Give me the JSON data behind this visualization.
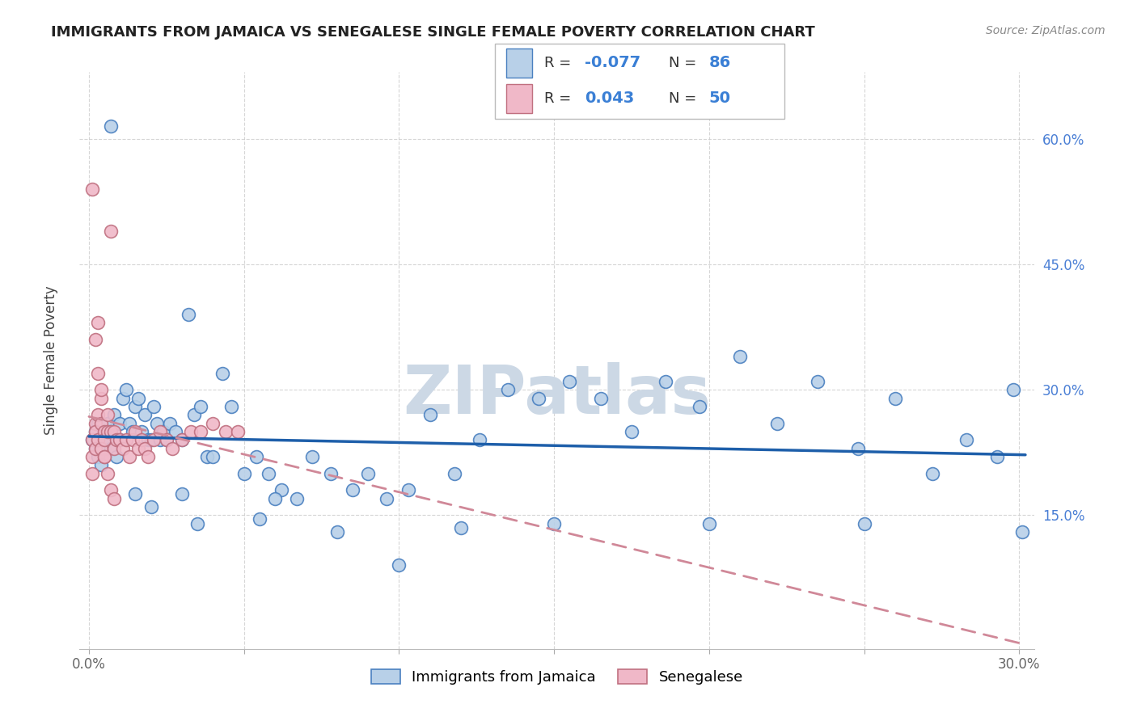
{
  "title": "IMMIGRANTS FROM JAMAICA VS SENEGALESE SINGLE FEMALE POVERTY CORRELATION CHART",
  "source": "Source: ZipAtlas.com",
  "ylabel": "Single Female Poverty",
  "legend_label1": "Immigrants from Jamaica",
  "legend_label2": "Senegalese",
  "r1_label": "R = ",
  "r1_val": "-0.077",
  "n1_label": "N = ",
  "n1_val": "86",
  "r2_label": "R = ",
  "r2_val": "0.043",
  "n2_label": "N = ",
  "n2_val": "50",
  "color_blue_fill": "#b8d0e8",
  "color_blue_edge": "#4a80c0",
  "color_pink_fill": "#f0b8c8",
  "color_pink_edge": "#c07080",
  "trendline_blue_color": "#1e5faa",
  "trendline_pink_color": "#d08898",
  "watermark": "ZIPatlas",
  "watermark_color": "#ccd8e5",
  "legend_text_color": "#333333",
  "legend_val_color": "#3a7fd5",
  "title_color": "#222222",
  "source_color": "#888888",
  "ytick_color": "#4a7fd5",
  "xtick_color": "#666666",
  "ylabel_color": "#444444",
  "grid_color": "#cccccc",
  "xlim": [
    -0.003,
    0.305
  ],
  "ylim": [
    -0.01,
    0.68
  ],
  "ytick_vals": [
    0.15,
    0.3,
    0.45,
    0.6
  ],
  "ytick_labels": [
    "15.0%",
    "30.0%",
    "45.0%",
    "60.0%"
  ],
  "xtick_vals": [
    0.0,
    0.05,
    0.1,
    0.15,
    0.2,
    0.25,
    0.3
  ],
  "jamaica_x": [
    0.001,
    0.002,
    0.002,
    0.003,
    0.003,
    0.004,
    0.004,
    0.005,
    0.005,
    0.006,
    0.006,
    0.007,
    0.007,
    0.008,
    0.009,
    0.01,
    0.01,
    0.011,
    0.012,
    0.013,
    0.014,
    0.015,
    0.016,
    0.017,
    0.018,
    0.019,
    0.02,
    0.021,
    0.022,
    0.023,
    0.024,
    0.025,
    0.026,
    0.028,
    0.03,
    0.032,
    0.034,
    0.036,
    0.038,
    0.04,
    0.043,
    0.046,
    0.05,
    0.054,
    0.058,
    0.062,
    0.067,
    0.072,
    0.078,
    0.085,
    0.09,
    0.096,
    0.103,
    0.11,
    0.118,
    0.126,
    0.135,
    0.145,
    0.155,
    0.165,
    0.175,
    0.186,
    0.197,
    0.21,
    0.222,
    0.235,
    0.248,
    0.26,
    0.272,
    0.283,
    0.293,
    0.298,
    0.301,
    0.02,
    0.035,
    0.06,
    0.1,
    0.15,
    0.2,
    0.25,
    0.007,
    0.015,
    0.03,
    0.055,
    0.08,
    0.12
  ],
  "jamaica_y": [
    0.24,
    0.25,
    0.23,
    0.22,
    0.26,
    0.24,
    0.21,
    0.25,
    0.23,
    0.26,
    0.24,
    0.23,
    0.25,
    0.27,
    0.22,
    0.26,
    0.24,
    0.29,
    0.3,
    0.26,
    0.25,
    0.28,
    0.29,
    0.25,
    0.27,
    0.24,
    0.24,
    0.28,
    0.26,
    0.24,
    0.25,
    0.24,
    0.26,
    0.25,
    0.24,
    0.39,
    0.27,
    0.28,
    0.22,
    0.22,
    0.32,
    0.28,
    0.2,
    0.22,
    0.2,
    0.18,
    0.17,
    0.22,
    0.2,
    0.18,
    0.2,
    0.17,
    0.18,
    0.27,
    0.2,
    0.24,
    0.3,
    0.29,
    0.31,
    0.29,
    0.25,
    0.31,
    0.28,
    0.34,
    0.26,
    0.31,
    0.23,
    0.29,
    0.2,
    0.24,
    0.22,
    0.3,
    0.13,
    0.16,
    0.14,
    0.17,
    0.09,
    0.14,
    0.14,
    0.14,
    0.615,
    0.175,
    0.175,
    0.145,
    0.13,
    0.135
  ],
  "senegal_x": [
    0.001,
    0.001,
    0.001,
    0.002,
    0.002,
    0.002,
    0.003,
    0.003,
    0.003,
    0.004,
    0.004,
    0.004,
    0.005,
    0.005,
    0.005,
    0.006,
    0.006,
    0.007,
    0.007,
    0.008,
    0.008,
    0.009,
    0.01,
    0.011,
    0.012,
    0.013,
    0.014,
    0.015,
    0.016,
    0.017,
    0.018,
    0.019,
    0.021,
    0.023,
    0.025,
    0.027,
    0.03,
    0.033,
    0.036,
    0.04,
    0.044,
    0.048,
    0.001,
    0.002,
    0.003,
    0.004,
    0.005,
    0.006,
    0.007,
    0.008
  ],
  "senegal_y": [
    0.24,
    0.22,
    0.2,
    0.26,
    0.25,
    0.23,
    0.38,
    0.27,
    0.24,
    0.29,
    0.26,
    0.23,
    0.25,
    0.24,
    0.22,
    0.27,
    0.25,
    0.49,
    0.25,
    0.25,
    0.23,
    0.24,
    0.24,
    0.23,
    0.24,
    0.22,
    0.24,
    0.25,
    0.23,
    0.24,
    0.23,
    0.22,
    0.24,
    0.25,
    0.24,
    0.23,
    0.24,
    0.25,
    0.25,
    0.26,
    0.25,
    0.25,
    0.54,
    0.36,
    0.32,
    0.3,
    0.22,
    0.2,
    0.18,
    0.17
  ]
}
